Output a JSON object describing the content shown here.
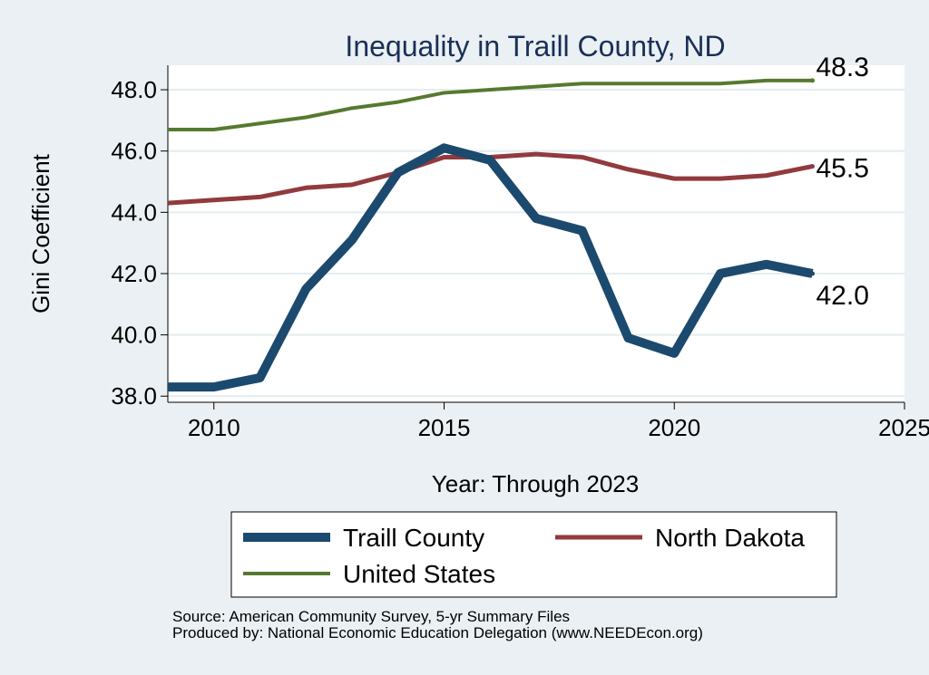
{
  "chart_data": {
    "type": "line",
    "title": "Inequality in Traill County, ND",
    "xlabel": "Year: Through 2023",
    "ylabel": "Gini Coefficient",
    "xlim": [
      2009,
      2025
    ],
    "ylim": [
      37.8,
      48.8
    ],
    "xticks": [
      2010,
      2015,
      2020,
      2025
    ],
    "yticks": [
      38.0,
      40.0,
      42.0,
      44.0,
      46.0,
      48.0
    ],
    "ytick_labels": [
      "38.0",
      "40.0",
      "42.0",
      "44.0",
      "46.0",
      "48.0"
    ],
    "grid": true,
    "legend": "bottom",
    "x": [
      2009,
      2010,
      2011,
      2012,
      2013,
      2014,
      2015,
      2016,
      2017,
      2018,
      2019,
      2020,
      2021,
      2022,
      2023
    ],
    "series": [
      {
        "name": "Traill County",
        "color": "#1c4a6e",
        "values": [
          38.3,
          38.3,
          38.6,
          41.5,
          43.1,
          45.3,
          46.1,
          45.7,
          43.8,
          43.4,
          39.9,
          39.4,
          42.0,
          42.3,
          42.0
        ],
        "end_label": "42.0"
      },
      {
        "name": "North Dakota",
        "color": "#923a3e",
        "values": [
          44.3,
          44.4,
          44.5,
          44.8,
          44.9,
          45.3,
          45.8,
          45.8,
          45.9,
          45.8,
          45.4,
          45.1,
          45.1,
          45.2,
          45.5
        ],
        "end_label": "45.5"
      },
      {
        "name": "United States",
        "color": "#557a2e",
        "values": [
          46.7,
          46.7,
          46.9,
          47.1,
          47.4,
          47.6,
          47.9,
          48.0,
          48.1,
          48.2,
          48.2,
          48.2,
          48.2,
          48.3,
          48.3
        ],
        "end_label": "48.3"
      }
    ]
  },
  "source": {
    "line1": "Source: American Community Survey, 5-yr Summary Files",
    "line2": "Produced by: National Economic Education Delegation (www.NEEDEcon.org)"
  }
}
